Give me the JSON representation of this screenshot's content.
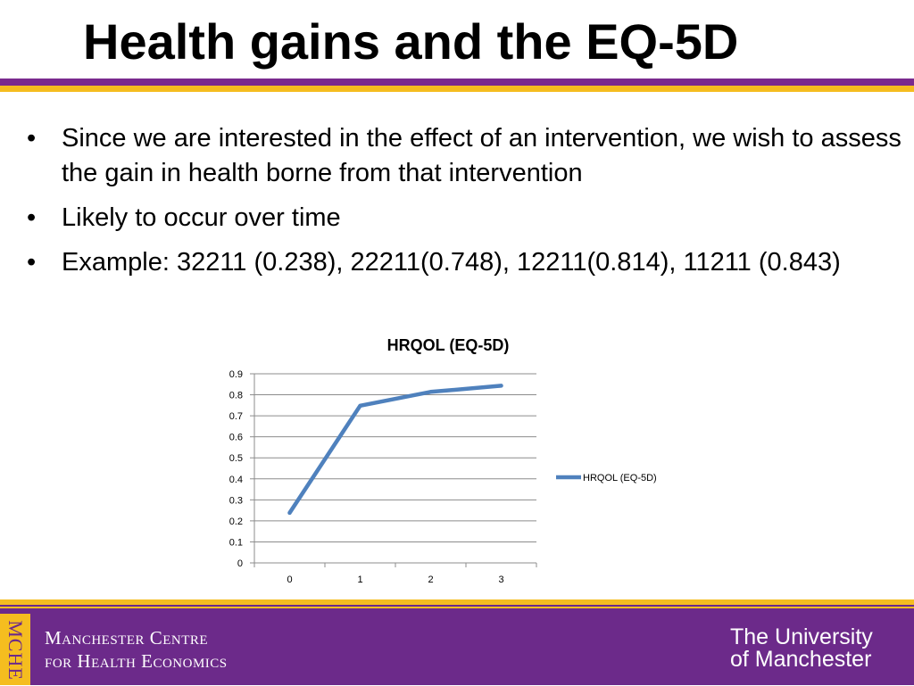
{
  "slide": {
    "title": "Health gains and the EQ-5D",
    "bullet_char": "•",
    "bullets": [
      "Since we are interested in the effect of an intervention, we wish to assess the gain in health borne from that intervention",
      "Likely to occur over time",
      "Example: 32211 (0.238), 22211(0.748), 12211(0.814), 11211 (0.843)"
    ]
  },
  "chart_data": {
    "type": "line",
    "title": "HRQOL (EQ-5D)",
    "categories": [
      "0",
      "1",
      "2",
      "3"
    ],
    "series": [
      {
        "name": "HRQOL (EQ-5D)",
        "values": [
          0.238,
          0.748,
          0.814,
          0.843
        ],
        "color": "#4f81bd"
      }
    ],
    "ylim": [
      0,
      0.9
    ],
    "yticks": [
      "0",
      "0.1",
      "0.2",
      "0.3",
      "0.4",
      "0.5",
      "0.6",
      "0.7",
      "0.8",
      "0.9"
    ],
    "grid": true,
    "legend": "right"
  },
  "footer": {
    "mche_label": "MCHE",
    "centre_line1": "Manchester Centre",
    "centre_line2": "for Health Economics",
    "university_line1": "The University",
    "university_line2": "of Manchester",
    "background_color": "#6c2a8a",
    "accent_color": "#f5bd1f"
  }
}
